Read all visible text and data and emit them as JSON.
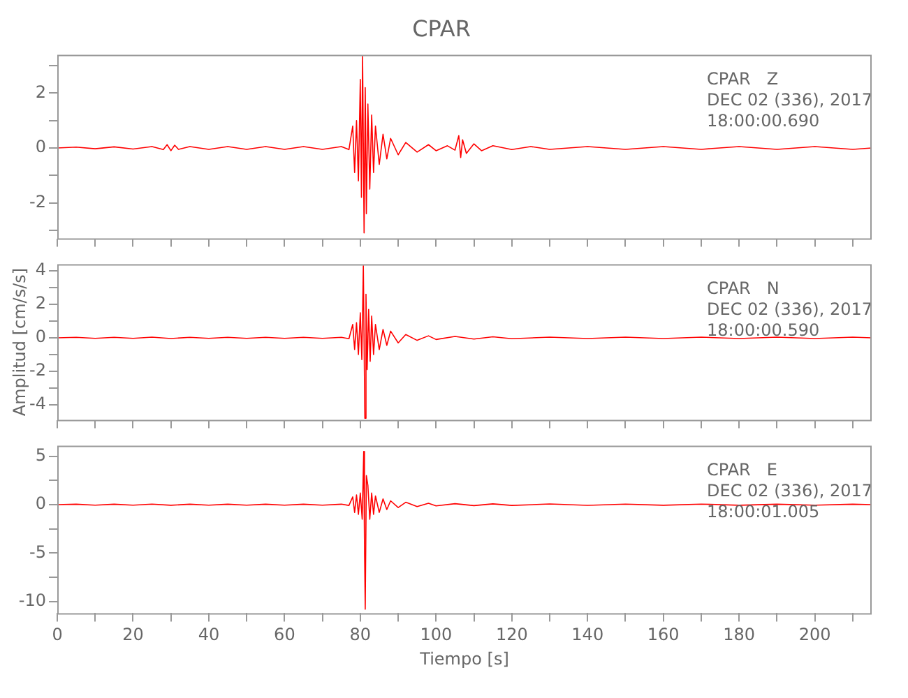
{
  "chart_data": [
    {
      "type": "line",
      "title": "CPAR",
      "annotations": [
        "CPAR   Z",
        "DEC 02 (336), 2017",
        "18:00:00.690"
      ],
      "tick_labels": "y",
      "grid": false,
      "legend": false,
      "marker": "none",
      "line_style": "solid",
      "xlim": [
        0,
        215
      ],
      "xticks": [
        0,
        {
          "value": 10,
          "label": null
        },
        20,
        {
          "value": 30,
          "label": null
        },
        40,
        {
          "value": 50,
          "label": null
        },
        60,
        {
          "value": 70,
          "label": null
        },
        80,
        {
          "value": 90,
          "label": null
        },
        100,
        {
          "value": 110,
          "label": null
        },
        120,
        {
          "value": 130,
          "label": null
        },
        140,
        {
          "value": 150,
          "label": null
        },
        160,
        {
          "value": 170,
          "label": null
        },
        180,
        {
          "value": 190,
          "label": null
        },
        200,
        {
          "value": 210,
          "label": null
        }
      ],
      "ylim": [
        -3.3,
        3.4
      ],
      "yticks": [
        {
          "value": -3,
          "label": null
        },
        -2,
        {
          "value": -1,
          "label": null
        },
        0,
        {
          "value": 1,
          "label": null
        },
        2,
        {
          "value": 3,
          "label": null
        }
      ],
      "series": [
        {
          "color": "#ff0000",
          "x": [
            0,
            5,
            10,
            15,
            20,
            25,
            28,
            29,
            30,
            31,
            32,
            35,
            40,
            45,
            50,
            55,
            60,
            65,
            70,
            75,
            77,
            78,
            78.5,
            79,
            79.5,
            80,
            80.3,
            80.6,
            81,
            81.3,
            81.6,
            82,
            82.5,
            83,
            83.5,
            84,
            85,
            86,
            87,
            88,
            90,
            92,
            95,
            98,
            100,
            103,
            105,
            106,
            106.5,
            107,
            108,
            110,
            112,
            115,
            120,
            125,
            130,
            140,
            150,
            160,
            170,
            180,
            190,
            200,
            210,
            215
          ],
          "values": [
            0,
            0.03,
            -0.03,
            0.04,
            -0.04,
            0.05,
            -0.06,
            0.12,
            -0.1,
            0.1,
            -0.05,
            0.05,
            -0.05,
            0.05,
            -0.05,
            0.05,
            -0.05,
            0.05,
            -0.05,
            0.05,
            -0.06,
            0.8,
            -0.9,
            1.0,
            -1.2,
            2.5,
            -1.8,
            3.35,
            -3.1,
            2.2,
            -2.4,
            1.6,
            -1.5,
            1.2,
            -0.9,
            0.8,
            -0.6,
            0.5,
            -0.4,
            0.35,
            -0.25,
            0.2,
            -0.15,
            0.12,
            -0.1,
            0.08,
            -0.08,
            0.45,
            -0.35,
            0.3,
            -0.2,
            0.15,
            -0.1,
            0.08,
            -0.06,
            0.05,
            -0.05,
            0.05,
            -0.05,
            0.05,
            -0.05,
            0.05,
            -0.05,
            0.05,
            -0.05,
            0
          ]
        }
      ]
    },
    {
      "type": "line",
      "ylabel": "Amplitud [cm/s/s]",
      "annotations": [
        "CPAR   N",
        "DEC 02 (336), 2017",
        "18:00:00.590"
      ],
      "tick_labels": "y",
      "grid": false,
      "legend": false,
      "marker": "none",
      "line_style": "solid",
      "xlim": [
        0,
        215
      ],
      "xticks": [
        0,
        {
          "value": 10,
          "label": null
        },
        20,
        {
          "value": 30,
          "label": null
        },
        40,
        {
          "value": 50,
          "label": null
        },
        60,
        {
          "value": 70,
          "label": null
        },
        80,
        {
          "value": 90,
          "label": null
        },
        100,
        {
          "value": 110,
          "label": null
        },
        120,
        {
          "value": 130,
          "label": null
        },
        140,
        {
          "value": 150,
          "label": null
        },
        160,
        {
          "value": 170,
          "label": null
        },
        180,
        {
          "value": 190,
          "label": null
        },
        200,
        {
          "value": 210,
          "label": null
        }
      ],
      "ylim": [
        -4.9,
        4.4
      ],
      "yticks": [
        -4,
        {
          "value": -3,
          "label": null
        },
        -2,
        {
          "value": -1,
          "label": null
        },
        0,
        {
          "value": 1,
          "label": null
        },
        2,
        {
          "value": 3,
          "label": null
        },
        4
      ],
      "series": [
        {
          "color": "#ff0000",
          "x": [
            0,
            5,
            10,
            15,
            20,
            25,
            30,
            35,
            40,
            45,
            50,
            55,
            60,
            65,
            70,
            75,
            77,
            78,
            78.5,
            79,
            79.5,
            80,
            80.4,
            80.8,
            81.2,
            81.5,
            81.8,
            82.2,
            82.6,
            83,
            83.5,
            84,
            85,
            86,
            87,
            88,
            90,
            92,
            95,
            98,
            100,
            105,
            110,
            115,
            120,
            130,
            140,
            150,
            160,
            170,
            180,
            190,
            200,
            210,
            215
          ],
          "values": [
            0,
            0.03,
            -0.03,
            0.03,
            -0.03,
            0.04,
            -0.04,
            0.03,
            -0.03,
            0.03,
            -0.03,
            0.03,
            -0.03,
            0.03,
            -0.03,
            0.03,
            -0.05,
            0.8,
            -0.7,
            0.9,
            -1.0,
            1.5,
            -1.3,
            4.3,
            -4.8,
            2.6,
            -1.9,
            1.7,
            -1.4,
            1.3,
            -1.0,
            0.8,
            -0.7,
            0.5,
            -0.45,
            0.4,
            -0.3,
            0.2,
            -0.15,
            0.12,
            -0.1,
            0.08,
            -0.07,
            0.06,
            -0.05,
            0.04,
            -0.04,
            0.04,
            -0.04,
            0.04,
            -0.04,
            0.04,
            -0.04,
            0.04,
            0
          ]
        }
      ]
    },
    {
      "type": "line",
      "xlabel": "Tiempo [s]",
      "annotations": [
        "CPAR   E",
        "DEC 02 (336), 2017",
        "18:00:01.005"
      ],
      "grid": false,
      "legend": false,
      "marker": "none",
      "line_style": "solid",
      "xlim": [
        0,
        215
      ],
      "xticks": [
        0,
        {
          "value": 10,
          "label": null
        },
        20,
        {
          "value": 30,
          "label": null
        },
        40,
        {
          "value": 50,
          "label": null
        },
        60,
        {
          "value": 70,
          "label": null
        },
        80,
        {
          "value": 90,
          "label": null
        },
        100,
        {
          "value": 110,
          "label": null
        },
        120,
        {
          "value": 130,
          "label": null
        },
        140,
        {
          "value": 150,
          "label": null
        },
        160,
        {
          "value": 170,
          "label": null
        },
        180,
        {
          "value": 190,
          "label": null
        },
        200,
        {
          "value": 210,
          "label": null
        }
      ],
      "ylim": [
        -11.2,
        6.1
      ],
      "yticks": [
        -10,
        {
          "value": -7.5,
          "label": null
        },
        -5,
        {
          "value": -2.5,
          "label": null
        },
        0,
        {
          "value": 2.5,
          "label": null
        },
        5
      ],
      "series": [
        {
          "color": "#ff0000",
          "x": [
            0,
            5,
            10,
            15,
            20,
            25,
            30,
            35,
            40,
            45,
            50,
            55,
            60,
            65,
            70,
            75,
            77,
            78,
            78.5,
            79,
            79.5,
            80,
            80.5,
            80.9,
            81.1,
            81.3,
            81.6,
            82,
            82.5,
            83,
            83.5,
            84,
            85,
            86,
            87,
            88,
            90,
            92,
            95,
            98,
            100,
            105,
            110,
            115,
            120,
            130,
            140,
            150,
            160,
            170,
            180,
            190,
            200,
            210,
            215
          ],
          "values": [
            0,
            0.05,
            -0.05,
            0.05,
            -0.05,
            0.06,
            -0.06,
            0.05,
            -0.05,
            0.05,
            -0.05,
            0.05,
            -0.05,
            0.05,
            -0.05,
            0.05,
            -0.08,
            0.8,
            -0.8,
            1.0,
            -1.0,
            1.2,
            -1.5,
            5.5,
            -4.0,
            -10.8,
            3.0,
            2.0,
            -1.5,
            1.2,
            -1.0,
            0.9,
            -0.8,
            0.6,
            -0.5,
            0.4,
            -0.3,
            0.25,
            -0.2,
            0.15,
            -0.12,
            0.1,
            -0.1,
            0.08,
            -0.08,
            0.07,
            -0.07,
            0.06,
            -0.06,
            0.06,
            -0.06,
            0.05,
            -0.05,
            0.05,
            0
          ]
        }
      ]
    }
  ]
}
